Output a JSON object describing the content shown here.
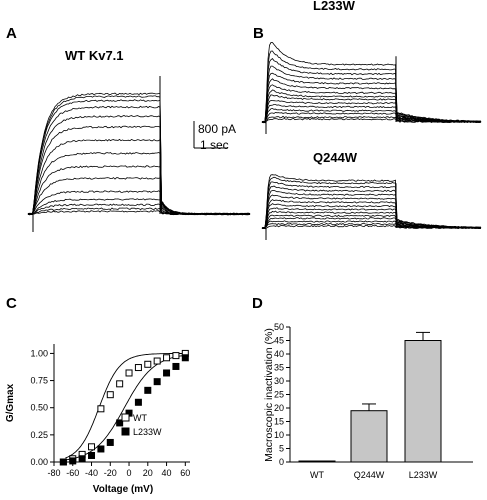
{
  "panels": {
    "A": {
      "letter": "A",
      "title": "WT Kv7.1",
      "scale_current": "800 pA",
      "scale_time": "1 sec",
      "peaks": [
        0.02,
        0.04,
        0.07,
        0.11,
        0.17,
        0.27,
        0.36,
        0.46,
        0.56,
        0.66,
        0.74,
        0.81,
        0.86,
        0.89,
        0.91
      ]
    },
    "B": {
      "letter": "B",
      "title_top": "L233W",
      "title_bottom": "Q244W",
      "top_traces": [
        [
          0.03,
          0.03
        ],
        [
          0.06,
          0.05
        ],
        [
          0.1,
          0.09
        ],
        [
          0.15,
          0.12
        ],
        [
          0.2,
          0.16
        ],
        [
          0.26,
          0.2
        ],
        [
          0.32,
          0.24
        ],
        [
          0.38,
          0.27
        ],
        [
          0.45,
          0.31
        ],
        [
          0.52,
          0.36
        ],
        [
          0.6,
          0.41
        ],
        [
          0.68,
          0.46
        ],
        [
          0.78,
          0.51
        ],
        [
          0.88,
          0.56
        ],
        [
          1.0,
          0.61
        ]
      ],
      "bottom_traces": [
        [
          0.03,
          0.03
        ],
        [
          0.07,
          0.06
        ],
        [
          0.11,
          0.1
        ],
        [
          0.16,
          0.15
        ],
        [
          0.21,
          0.19
        ],
        [
          0.27,
          0.24
        ],
        [
          0.33,
          0.29
        ],
        [
          0.4,
          0.34
        ],
        [
          0.47,
          0.4
        ],
        [
          0.55,
          0.46
        ],
        [
          0.63,
          0.52
        ],
        [
          0.71,
          0.58
        ],
        [
          0.79,
          0.64
        ],
        [
          0.86,
          0.7
        ],
        [
          0.92,
          0.74
        ]
      ]
    },
    "C": {
      "letter": "C",
      "chart_data": {
        "type": "scatter",
        "xlabel": "Voltage (mV)",
        "ylabel": "G/Gmax",
        "xlim": [
          -80,
          65
        ],
        "ylim": [
          0,
          1.05
        ],
        "x_ticks": [
          "-80",
          "-60",
          "-40",
          "-20",
          "0",
          "20",
          "40",
          "60"
        ],
        "y_ticks": [
          "0.00",
          "0.25",
          "0.50",
          "0.75",
          "1.00"
        ],
        "legend_position": "bottom-right",
        "series": [
          {
            "name": "WT",
            "marker": "open-square",
            "x": [
              -70,
              -60,
              -50,
              -40,
              -30,
              -20,
              -10,
              0,
              10,
              20,
              30,
              40,
              50,
              60
            ],
            "y": [
              0.0,
              0.03,
              0.07,
              0.14,
              0.49,
              0.62,
              0.72,
              0.82,
              0.87,
              0.9,
              0.93,
              0.96,
              0.98,
              1.0
            ],
            "fit": {
              "v_half": -32,
              "slope": 11
            }
          },
          {
            "name": "L233W",
            "marker": "filled-square",
            "x": [
              -70,
              -60,
              -50,
              -40,
              -30,
              -20,
              -10,
              0,
              10,
              20,
              30,
              40,
              50,
              60
            ],
            "y": [
              0.0,
              0.01,
              0.03,
              0.06,
              0.12,
              0.18,
              0.36,
              0.45,
              0.55,
              0.66,
              0.74,
              0.82,
              0.88,
              0.96
            ],
            "fit": {
              "v_half": -5,
              "slope": 16
            }
          }
        ]
      }
    },
    "D": {
      "letter": "D",
      "chart_data": {
        "type": "bar",
        "ylabel": "Macroscopic inactivation (%)",
        "categories": [
          "WT",
          "Q244W",
          "L233W"
        ],
        "values": [
          0,
          19,
          45
        ],
        "errors": [
          0,
          2.5,
          3
        ],
        "ylim": [
          0,
          50
        ],
        "y_ticks": [
          "0",
          "5",
          "10",
          "15",
          "20",
          "25",
          "30",
          "35",
          "40",
          "45",
          "50"
        ],
        "bar_color": "#c6c6c6"
      }
    }
  }
}
